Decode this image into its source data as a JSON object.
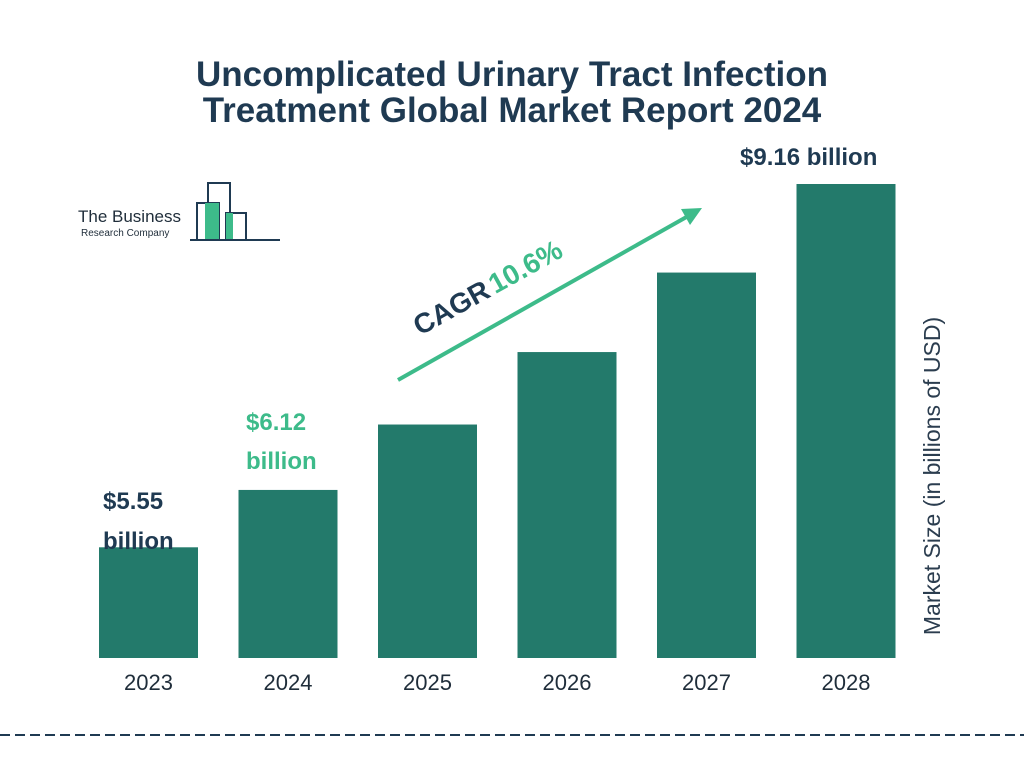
{
  "title_line1": "Uncomplicated Urinary Tract Infection",
  "title_line2": "Treatment Global Market Report 2024",
  "logo": {
    "line1": "The Business",
    "line2": "Research Company"
  },
  "cagr": {
    "label": "CAGR",
    "value": "10.6%"
  },
  "annotations": [
    {
      "line1": "$5.55",
      "line2": "billion",
      "color": "#1f3a52"
    },
    {
      "line1": "$6.12",
      "line2": "billion",
      "color": "#3dbb8a"
    },
    {
      "line1": "$9.16 billion",
      "line2": "",
      "color": "#1f3a52"
    }
  ],
  "colors": {
    "bar": "#237a6b",
    "title": "#1f3a52",
    "accent": "#3dbb8a",
    "dashed_rule": "#1f3a52"
  },
  "chart_data": {
    "type": "bar",
    "title": "Uncomplicated Urinary Tract Infection Treatment Global Market Report 2024",
    "categories": [
      "2023",
      "2024",
      "2025",
      "2026",
      "2027",
      "2028"
    ],
    "values": [
      5.55,
      6.12,
      6.77,
      7.49,
      8.28,
      9.16
    ],
    "ylabel": "Market Size (in billions of USD)",
    "xlabel": "",
    "ylim": [
      4.45,
      9.16
    ],
    "grid": false
  }
}
